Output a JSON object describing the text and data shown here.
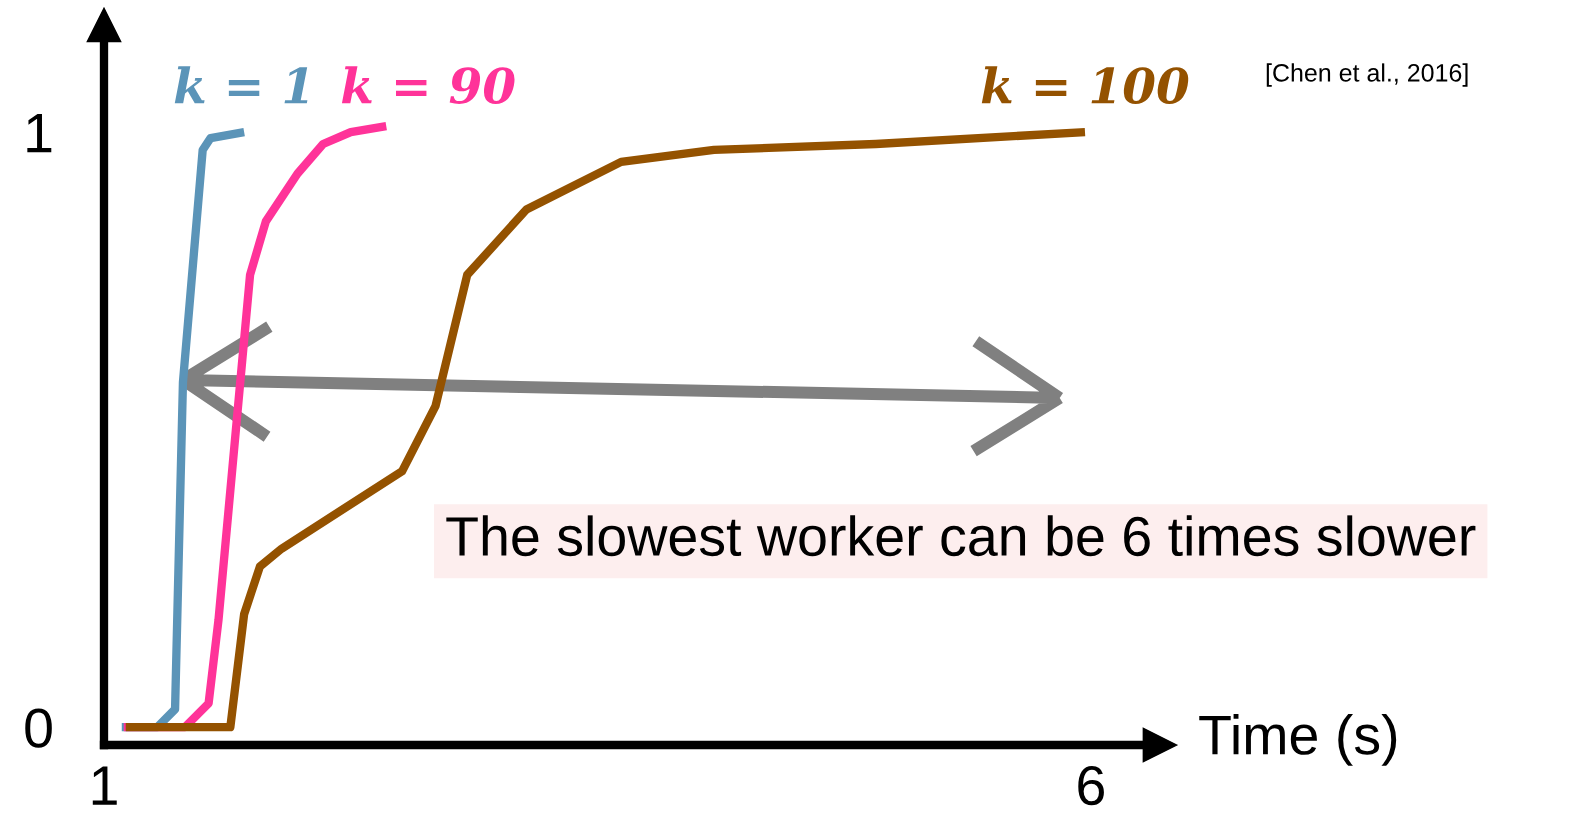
{
  "chart_data": {
    "type": "line",
    "xlabel": "Time (s)",
    "xlim": [
      1,
      6.35
    ],
    "ylim": [
      -0.03,
      1.18
    ],
    "xticks": [
      1,
      6
    ],
    "yticks": [
      0,
      1
    ],
    "annotations": [
      "The slowest worker can be 6 times slower",
      "[Chen et al., 2016]"
    ],
    "series": [
      {
        "name": "k = 1",
        "color": "#5b94b8",
        "x": [
          1.09,
          1.27,
          1.36,
          1.4,
          1.5,
          1.54,
          1.71
        ],
        "values": [
          0,
          0,
          0.03,
          0.58,
          0.97,
          0.99,
          1.0
        ]
      },
      {
        "name": "k = 90",
        "color": "#ff3399",
        "x": [
          1.1,
          1.41,
          1.53,
          1.58,
          1.74,
          1.82,
          1.98,
          2.11,
          2.25,
          2.43
        ],
        "values": [
          0,
          0,
          0.04,
          0.18,
          0.76,
          0.85,
          0.93,
          0.98,
          1.0,
          1.01
        ]
      },
      {
        "name": "k = 100",
        "color": "#945200",
        "x": [
          1.11,
          1.64,
          1.71,
          1.79,
          1.9,
          2.51,
          2.68,
          2.84,
          3.14,
          3.62,
          4.09,
          4.91,
          5.97
        ],
        "values": [
          0,
          0,
          0.19,
          0.27,
          0.3,
          0.43,
          0.54,
          0.76,
          0.87,
          0.95,
          0.97,
          0.98,
          1.0
        ]
      }
    ]
  }
}
